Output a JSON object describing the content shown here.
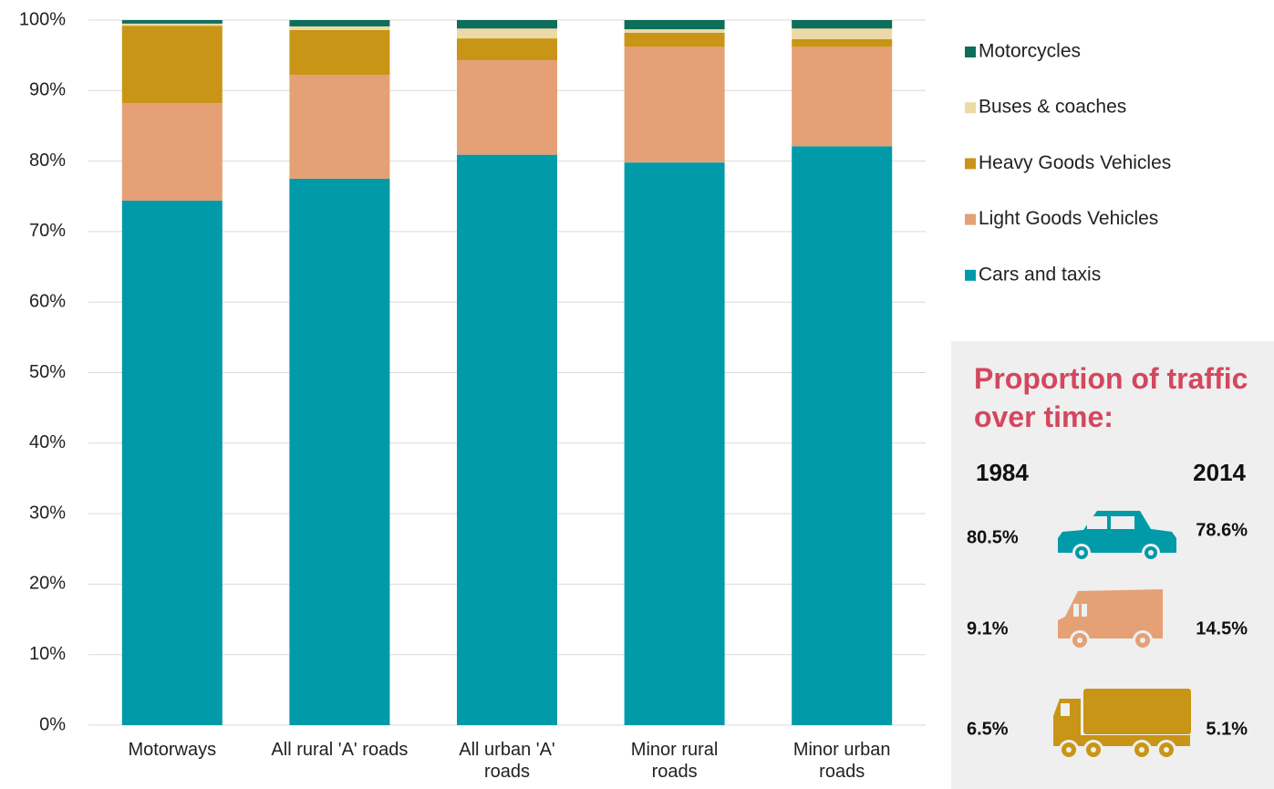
{
  "chart_data": {
    "type": "stacked_bar",
    "categories": [
      "Motorways",
      "All rural 'A' roads",
      "All urban 'A' roads",
      "Minor rural roads",
      "Minor urban roads"
    ],
    "series": [
      {
        "name": "Cars and taxis",
        "color": "#009aa9",
        "values": [
          74.4,
          77.5,
          80.9,
          79.8,
          82.1
        ]
      },
      {
        "name": "Light Goods Vehicles",
        "color": "#e5a075",
        "values": [
          13.8,
          14.7,
          13.4,
          16.4,
          14.1
        ]
      },
      {
        "name": "Heavy Goods Vehicles",
        "color": "#c99516",
        "values": [
          11.0,
          6.4,
          3.1,
          2.0,
          1.1
        ]
      },
      {
        "name": "Buses & coaches",
        "color": "#ecd9a6",
        "values": [
          0.3,
          0.5,
          1.4,
          0.5,
          1.5
        ]
      },
      {
        "name": "Motorcycles",
        "color": "#0e6e5a",
        "values": [
          0.5,
          0.9,
          1.2,
          1.3,
          1.2
        ]
      }
    ],
    "ylim": [
      0,
      100
    ],
    "yticks": [
      {
        "value": 0,
        "label": "0%"
      },
      {
        "value": 10,
        "label": "10%"
      },
      {
        "value": 20,
        "label": "20%"
      },
      {
        "value": 30,
        "label": "30%"
      },
      {
        "value": 40,
        "label": "40%"
      },
      {
        "value": 50,
        "label": "50%"
      },
      {
        "value": 60,
        "label": "60%"
      },
      {
        "value": 70,
        "label": "70%"
      },
      {
        "value": 80,
        "label": "80%"
      },
      {
        "value": 90,
        "label": "90%"
      },
      {
        "value": 100,
        "label": "100%"
      }
    ],
    "grid": true,
    "legend": "right"
  },
  "panel": {
    "title": "Proportion of traffic over time:",
    "years": [
      "1984",
      "2014"
    ],
    "rows": [
      [
        "80.5%",
        "78.6%"
      ],
      [
        "9.1%",
        "14.5%"
      ],
      [
        "6.5%",
        "5.1%"
      ]
    ]
  }
}
